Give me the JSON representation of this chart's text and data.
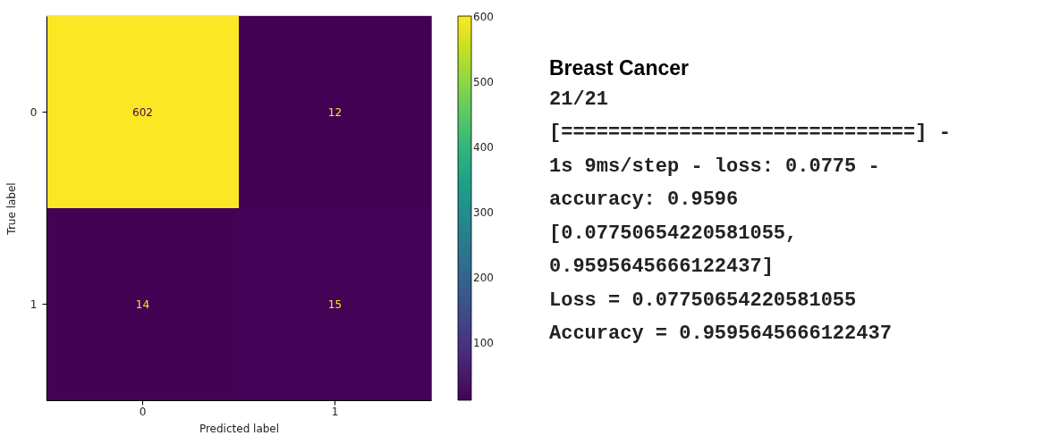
{
  "chart_data": [
    {
      "type": "heatmap",
      "xlabel": "Predicted label",
      "ylabel": "True label",
      "categories": [
        "0",
        "1"
      ],
      "y_categories": [
        "0",
        "1"
      ],
      "cells": [
        [
          602,
          12
        ],
        [
          14,
          15
        ]
      ],
      "data_labels": true,
      "clim": [
        12,
        602
      ],
      "cticks": [
        100,
        200,
        300,
        400,
        500,
        600
      ]
    },
    {
      "type": "other",
      "title": "Breast Cancer",
      "annotations": [
        "21/21",
        "[==============================] -",
        "1s 9ms/step - loss: 0.0775 -",
        "accuracy: 0.9596",
        "[0.07750654220581055,",
        "0.9595645666122437]",
        "Loss =  0.07750654220581055",
        "Accuracy =  0.9595645666122437"
      ]
    }
  ]
}
